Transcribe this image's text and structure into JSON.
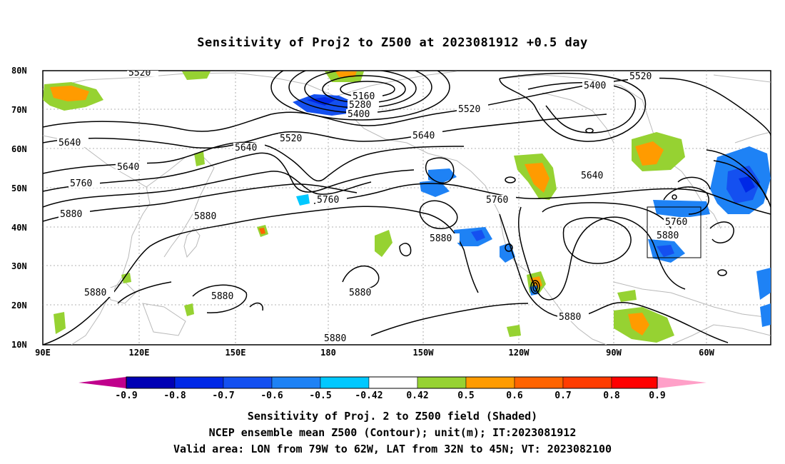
{
  "title": "Sensitivity of Proj2 to Z500 at 2023081912 +0.5 day",
  "latitude_labels": [
    "80N",
    "70N",
    "60N",
    "50N",
    "40N",
    "30N",
    "20N",
    "10N"
  ],
  "longitude_labels": [
    "90E",
    "120E",
    "150E",
    "180",
    "150W",
    "120W",
    "90W",
    "60W"
  ],
  "contour_labels": [
    "5520",
    "5160",
    "5280",
    "5400",
    "5520",
    "5400",
    "5640",
    "5520",
    "5640",
    "5520",
    "5640",
    "5640",
    "5760",
    "5640",
    "5760",
    "5880",
    "5760",
    "5880",
    "5760",
    "5880",
    "5880",
    "5880",
    "5880",
    "5880",
    "5880"
  ],
  "colorbar": {
    "labels": [
      "-0.9",
      "-0.8",
      "-0.7",
      "-0.6",
      "-0.5",
      "-0.42",
      "0.42",
      "0.5",
      "0.6",
      "0.7",
      "0.8",
      "0.9"
    ],
    "colors": [
      "#c0008c",
      "#0000b4",
      "#0028e6",
      "#1450f0",
      "#1e82f5",
      "#00c8ff",
      "#ffffff",
      "#96d232",
      "#ff9b00",
      "#ff6400",
      "#ff3c00",
      "#ff0000",
      "#ffa0c8"
    ]
  },
  "footer": {
    "line1": "Sensitivity of Proj. 2 to Z500 field (Shaded)",
    "line2": "NCEP ensemble mean Z500 (Contour); unit(m); IT:2023081912",
    "line3": "Valid area: LON from 79W to 62W, LAT from 32N to 45N; VT: 2023082100"
  }
}
